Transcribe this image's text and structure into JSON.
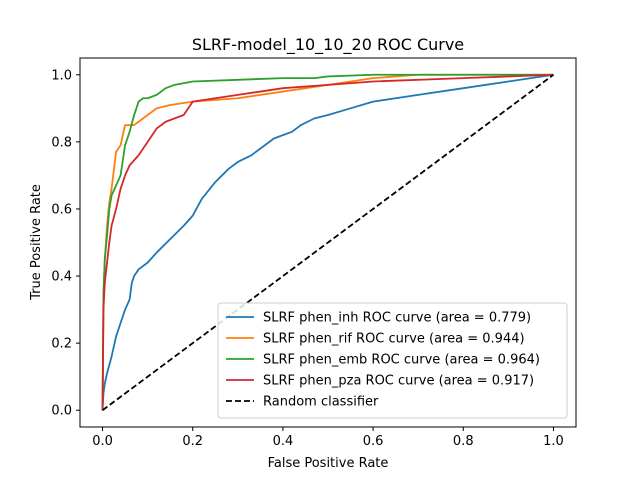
{
  "chart_data": {
    "type": "line",
    "title": "SLRF-model_10_10_20 ROC Curve",
    "xlabel": "False Positive Rate",
    "ylabel": "True Positive Rate",
    "xlim": [
      -0.05,
      1.05
    ],
    "ylim": [
      -0.05,
      1.05
    ],
    "xticks": [
      "0.0",
      "0.2",
      "0.4",
      "0.6",
      "0.8",
      "1.0"
    ],
    "yticks": [
      "0.0",
      "0.2",
      "0.4",
      "0.6",
      "0.8",
      "1.0"
    ],
    "xtick_values": [
      0,
      0.2,
      0.4,
      0.6,
      0.8,
      1.0
    ],
    "ytick_values": [
      0,
      0.2,
      0.4,
      0.6,
      0.8,
      1.0
    ],
    "grid": false,
    "legend_position": "lower-right",
    "series": [
      {
        "name": "SLRF phen_inh ROC curve (area = 0.779)",
        "color": "#1f77b4",
        "dash": "solid",
        "x": [
          0,
          0.002,
          0.005,
          0.01,
          0.02,
          0.03,
          0.04,
          0.05,
          0.06,
          0.065,
          0.07,
          0.08,
          0.1,
          0.12,
          0.15,
          0.18,
          0.2,
          0.22,
          0.25,
          0.28,
          0.3,
          0.33,
          0.36,
          0.38,
          0.4,
          0.42,
          0.44,
          0.47,
          0.5,
          0.55,
          0.6,
          0.7,
          0.8,
          0.9,
          0.95,
          1.0
        ],
        "y": [
          0,
          0.05,
          0.08,
          0.11,
          0.16,
          0.22,
          0.26,
          0.3,
          0.33,
          0.38,
          0.4,
          0.42,
          0.44,
          0.47,
          0.51,
          0.55,
          0.58,
          0.63,
          0.68,
          0.72,
          0.74,
          0.76,
          0.79,
          0.81,
          0.82,
          0.83,
          0.85,
          0.87,
          0.88,
          0.9,
          0.92,
          0.94,
          0.96,
          0.98,
          0.99,
          1.0
        ]
      },
      {
        "name": "SLRF phen_rif ROC curve (area = 0.944)",
        "color": "#ff7f0e",
        "dash": "solid",
        "x": [
          0,
          0.002,
          0.005,
          0.01,
          0.015,
          0.02,
          0.03,
          0.04,
          0.05,
          0.06,
          0.07,
          0.08,
          0.1,
          0.12,
          0.15,
          0.2,
          0.3,
          0.4,
          0.5,
          0.55,
          0.6,
          0.7,
          0.8,
          0.9,
          1.0
        ],
        "y": [
          0,
          0.33,
          0.45,
          0.55,
          0.62,
          0.66,
          0.77,
          0.79,
          0.85,
          0.85,
          0.85,
          0.86,
          0.88,
          0.9,
          0.91,
          0.92,
          0.93,
          0.95,
          0.97,
          0.98,
          0.99,
          1.0,
          1.0,
          1.0,
          1.0
        ]
      },
      {
        "name": "SLRF phen_emb ROC curve (area = 0.964)",
        "color": "#2ca02c",
        "dash": "solid",
        "x": [
          0,
          0.002,
          0.005,
          0.01,
          0.015,
          0.02,
          0.03,
          0.04,
          0.05,
          0.06,
          0.07,
          0.08,
          0.09,
          0.1,
          0.12,
          0.14,
          0.16,
          0.2,
          0.3,
          0.4,
          0.47,
          0.5,
          0.6,
          0.7,
          0.8,
          1.0
        ],
        "y": [
          0,
          0.35,
          0.45,
          0.52,
          0.6,
          0.64,
          0.67,
          0.7,
          0.79,
          0.83,
          0.88,
          0.92,
          0.93,
          0.93,
          0.94,
          0.96,
          0.97,
          0.98,
          0.985,
          0.99,
          0.99,
          0.995,
          1.0,
          1.0,
          1.0,
          1.0
        ]
      },
      {
        "name": "SLRF phen_pza ROC curve (area = 0.917)",
        "color": "#d62728",
        "dash": "solid",
        "x": [
          0,
          0.002,
          0.005,
          0.01,
          0.015,
          0.02,
          0.03,
          0.04,
          0.05,
          0.06,
          0.08,
          0.1,
          0.12,
          0.14,
          0.16,
          0.18,
          0.2,
          0.25,
          0.3,
          0.35,
          0.4,
          0.5,
          0.6,
          0.8,
          1.0
        ],
        "y": [
          0,
          0.3,
          0.38,
          0.44,
          0.5,
          0.55,
          0.6,
          0.66,
          0.7,
          0.73,
          0.76,
          0.8,
          0.84,
          0.86,
          0.87,
          0.88,
          0.92,
          0.93,
          0.94,
          0.95,
          0.96,
          0.97,
          0.98,
          0.99,
          1.0
        ]
      },
      {
        "name": "Random classifier",
        "color": "#000000",
        "dash": "dashed",
        "x": [
          0,
          1
        ],
        "y": [
          0,
          1
        ]
      }
    ]
  }
}
